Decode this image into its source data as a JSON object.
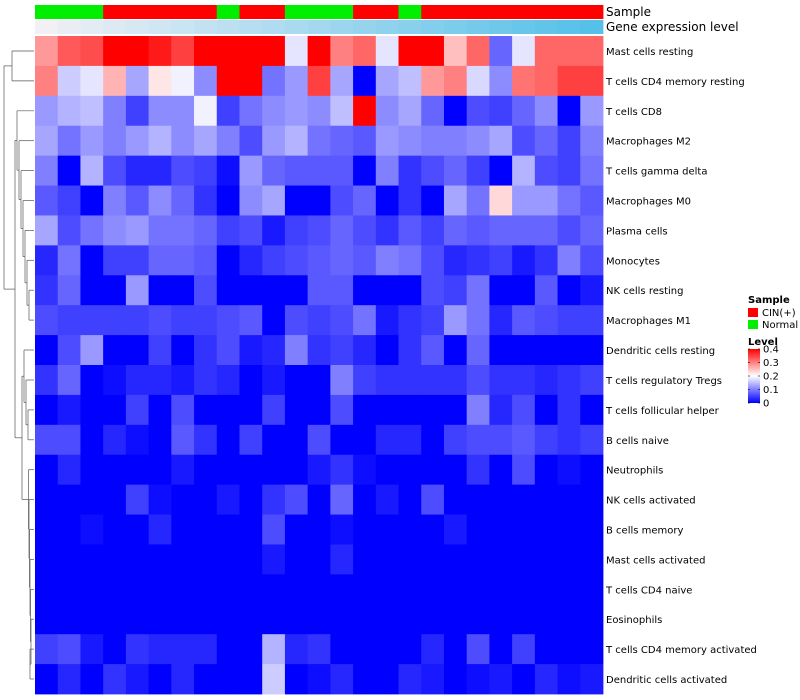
{
  "chart_data": {
    "type": "heatmap",
    "title": "",
    "annotation_tracks": [
      {
        "name": "Sample",
        "type": "categorical"
      },
      {
        "name": "Gene expression level",
        "type": "continuous"
      }
    ],
    "sample_groups": [
      "N",
      "N",
      "N",
      "C",
      "C",
      "C",
      "C",
      "C",
      "N",
      "C",
      "C",
      "N",
      "N",
      "N",
      "C",
      "C",
      "N",
      "C",
      "C",
      "C",
      "C",
      "C",
      "C",
      "C",
      "C"
    ],
    "expression_annotation": [
      0.02,
      0.04,
      0.06,
      0.08,
      0.1,
      0.12,
      0.14,
      0.16,
      0.18,
      0.2,
      0.22,
      0.24,
      0.26,
      0.28,
      0.3,
      0.32,
      0.34,
      0.36,
      0.38,
      0.4,
      0.42,
      0.44,
      0.46,
      0.48,
      0.5
    ],
    "rows": [
      "Mast cells resting",
      "T cells CD4 memory resting",
      "T cells CD8",
      "Macrophages M2",
      "T cells gamma delta",
      "Macrophages M0",
      "Plasma cells",
      "Monocytes",
      "NK cells resting",
      "Macrophages M1",
      "Dendritic cells resting",
      "T cells regulatory  Tregs",
      "T cells follicular helper",
      "B cells naive",
      "Neutrophils",
      "NK cells activated",
      "B cells memory",
      "Mast cells activated",
      "T cells CD4 naive",
      "Eosinophils",
      "T cells CD4 memory activated",
      "Dendritic cells activated"
    ],
    "values": [
      [
        0.28,
        0.33,
        0.34,
        0.42,
        0.41,
        0.38,
        0.35,
        0.45,
        0.45,
        0.45,
        0.45,
        0.18,
        0.45,
        0.3,
        0.32,
        0.18,
        0.45,
        0.45,
        0.25,
        0.32,
        0.08,
        0.18,
        0.32,
        0.32,
        0.32
      ],
      [
        0.3,
        0.16,
        0.18,
        0.26,
        0.13,
        0.22,
        0.19,
        0.11,
        0.45,
        0.45,
        0.09,
        0.12,
        0.35,
        0.13,
        0.0,
        0.13,
        0.15,
        0.28,
        0.3,
        0.17,
        0.11,
        0.31,
        0.32,
        0.35,
        0.35
      ],
      [
        0.12,
        0.14,
        0.15,
        0.1,
        0.05,
        0.11,
        0.11,
        0.19,
        0.05,
        0.09,
        0.11,
        0.12,
        0.11,
        0.15,
        0.45,
        0.11,
        0.13,
        0.08,
        0.0,
        0.06,
        0.05,
        0.08,
        0.11,
        0.0,
        0.12
      ],
      [
        0.13,
        0.09,
        0.12,
        0.1,
        0.12,
        0.14,
        0.11,
        0.13,
        0.1,
        0.06,
        0.12,
        0.14,
        0.09,
        0.08,
        0.07,
        0.12,
        0.11,
        0.1,
        0.1,
        0.11,
        0.13,
        0.06,
        0.08,
        0.05,
        0.1
      ],
      [
        0.1,
        0.0,
        0.14,
        0.06,
        0.03,
        0.03,
        0.06,
        0.05,
        0.01,
        0.12,
        0.08,
        0.07,
        0.07,
        0.07,
        0.0,
        0.1,
        0.04,
        0.06,
        0.08,
        0.05,
        0.0,
        0.14,
        0.06,
        0.05,
        0.09
      ],
      [
        0.07,
        0.05,
        0.0,
        0.1,
        0.07,
        0.11,
        0.08,
        0.04,
        0.0,
        0.11,
        0.13,
        0.0,
        0.0,
        0.06,
        0.08,
        0.0,
        0.04,
        0.0,
        0.13,
        0.09,
        0.23,
        0.12,
        0.12,
        0.09,
        0.07
      ],
      [
        0.13,
        0.06,
        0.09,
        0.11,
        0.12,
        0.09,
        0.09,
        0.08,
        0.05,
        0.06,
        0.02,
        0.05,
        0.06,
        0.08,
        0.06,
        0.04,
        0.07,
        0.05,
        0.08,
        0.07,
        0.08,
        0.08,
        0.08,
        0.06,
        0.08
      ],
      [
        0.03,
        0.09,
        0.0,
        0.05,
        0.05,
        0.08,
        0.08,
        0.07,
        0.0,
        0.03,
        0.05,
        0.06,
        0.07,
        0.08,
        0.07,
        0.1,
        0.09,
        0.06,
        0.03,
        0.04,
        0.05,
        0.02,
        0.04,
        0.1,
        0.06
      ],
      [
        0.04,
        0.08,
        0.0,
        0.0,
        0.12,
        0.0,
        0.0,
        0.06,
        0.0,
        0.0,
        0.0,
        0.0,
        0.07,
        0.07,
        0.0,
        0.0,
        0.0,
        0.06,
        0.05,
        0.09,
        0.0,
        0.0,
        0.07,
        0.0,
        0.02
      ],
      [
        0.06,
        0.05,
        0.05,
        0.05,
        0.05,
        0.06,
        0.05,
        0.05,
        0.06,
        0.07,
        0.0,
        0.06,
        0.05,
        0.06,
        0.09,
        0.02,
        0.04,
        0.05,
        0.12,
        0.09,
        0.03,
        0.07,
        0.06,
        0.05,
        0.05
      ],
      [
        0.0,
        0.06,
        0.12,
        0.0,
        0.0,
        0.05,
        0.0,
        0.04,
        0.06,
        0.02,
        0.03,
        0.1,
        0.04,
        0.05,
        0.03,
        0.0,
        0.04,
        0.07,
        0.0,
        0.08,
        0.0,
        0.0,
        0.0,
        0.0,
        0.0
      ],
      [
        0.04,
        0.08,
        0.0,
        0.01,
        0.03,
        0.03,
        0.02,
        0.04,
        0.03,
        0.0,
        0.02,
        0.0,
        0.0,
        0.1,
        0.05,
        0.04,
        0.04,
        0.04,
        0.04,
        0.06,
        0.04,
        0.04,
        0.03,
        0.04,
        0.05
      ],
      [
        0.0,
        0.02,
        0.0,
        0.0,
        0.05,
        0.0,
        0.06,
        0.0,
        0.0,
        0.0,
        0.05,
        0.0,
        0.0,
        0.06,
        0.0,
        0.0,
        0.0,
        0.0,
        0.0,
        0.1,
        0.03,
        0.06,
        0.0,
        0.04,
        0.0
      ],
      [
        0.06,
        0.06,
        0.0,
        0.03,
        0.01,
        0.0,
        0.07,
        0.04,
        0.0,
        0.05,
        0.0,
        0.0,
        0.06,
        0.0,
        0.0,
        0.03,
        0.03,
        0.0,
        0.05,
        0.06,
        0.06,
        0.07,
        0.05,
        0.04,
        0.05
      ],
      [
        0.0,
        0.03,
        0.0,
        0.0,
        0.0,
        0.0,
        0.02,
        0.0,
        0.0,
        0.0,
        0.0,
        0.0,
        0.02,
        0.04,
        0.01,
        0.0,
        0.0,
        0.0,
        0.0,
        0.04,
        0.0,
        0.06,
        0.0,
        0.01,
        0.0
      ],
      [
        0.0,
        0.0,
        0.0,
        0.0,
        0.05,
        0.01,
        0.0,
        0.0,
        0.02,
        0.0,
        0.04,
        0.06,
        0.0,
        0.08,
        0.0,
        0.02,
        0.0,
        0.06,
        0.0,
        0.0,
        0.0,
        0.0,
        0.0,
        0.0,
        0.0
      ],
      [
        0.0,
        0.0,
        0.01,
        0.0,
        0.0,
        0.03,
        0.0,
        0.0,
        0.0,
        0.0,
        0.06,
        0.0,
        0.0,
        0.01,
        0.0,
        0.0,
        0.0,
        0.0,
        0.02,
        0.0,
        0.0,
        0.0,
        0.0,
        0.0,
        0.0
      ],
      [
        0.0,
        0.0,
        0.0,
        0.0,
        0.0,
        0.0,
        0.0,
        0.0,
        0.0,
        0.0,
        0.02,
        0.0,
        0.0,
        0.03,
        0.0,
        0.0,
        0.0,
        0.0,
        0.0,
        0.0,
        0.0,
        0.0,
        0.0,
        0.0,
        0.0
      ],
      [
        0.0,
        0.0,
        0.0,
        0.0,
        0.0,
        0.0,
        0.0,
        0.0,
        0.0,
        0.0,
        0.0,
        0.0,
        0.0,
        0.0,
        0.0,
        0.0,
        0.0,
        0.0,
        0.0,
        0.0,
        0.0,
        0.0,
        0.0,
        0.0,
        0.0
      ],
      [
        0.0,
        0.0,
        0.0,
        0.0,
        0.0,
        0.0,
        0.0,
        0.0,
        0.0,
        0.0,
        0.0,
        0.0,
        0.0,
        0.0,
        0.0,
        0.0,
        0.0,
        0.0,
        0.0,
        0.0,
        0.0,
        0.0,
        0.0,
        0.0,
        0.0
      ],
      [
        0.05,
        0.06,
        0.02,
        0.0,
        0.04,
        0.03,
        0.03,
        0.03,
        0.0,
        0.0,
        0.14,
        0.03,
        0.04,
        0.0,
        0.0,
        0.0,
        0.0,
        0.03,
        0.0,
        0.06,
        0.0,
        0.05,
        0.0,
        0.0,
        0.0
      ],
      [
        0.0,
        0.03,
        0.0,
        0.04,
        0.02,
        0.0,
        0.03,
        0.0,
        0.0,
        0.0,
        0.16,
        0.0,
        0.01,
        0.03,
        0.0,
        0.0,
        0.03,
        0.02,
        0.0,
        0.01,
        0.02,
        0.0,
        0.03,
        0.01,
        0.02
      ]
    ],
    "legend": {
      "sample_title": "Sample",
      "sample_items": [
        {
          "label": "CIN(+)",
          "color": "#ff0000"
        },
        {
          "label": "Normal",
          "color": "#00ee00"
        }
      ],
      "level_title": "Level",
      "level_ticks": [
        "0.4",
        "0.3",
        "0.2",
        "0.1",
        "0"
      ],
      "level_tick_values": [
        0.4,
        0.3,
        0.2,
        0.1,
        0
      ],
      "level_range": [
        0,
        0.4
      ]
    },
    "colors": {
      "low": "#0000ff",
      "mid": "#ffffff",
      "high": "#ff0000",
      "annotation_low": "#f0f0f5",
      "annotation_high": "#55c0e8",
      "dendrogram": "#555555"
    }
  }
}
